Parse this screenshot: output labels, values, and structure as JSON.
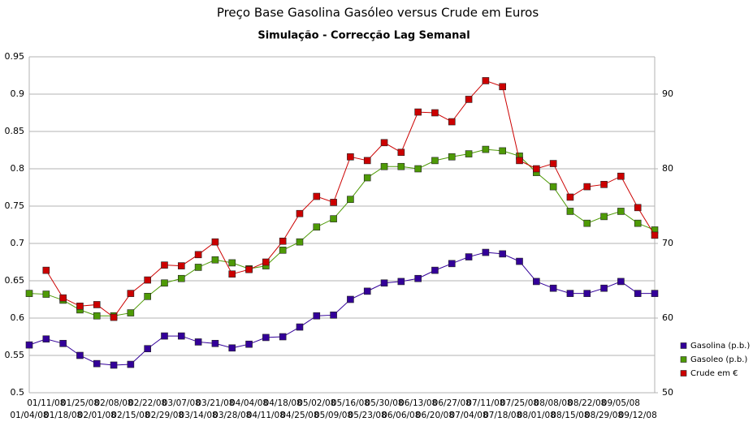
{
  "chart_data": {
    "type": "line",
    "title": "Preço Base Gasolina Gasóleo versus Crude em Euros",
    "subtitle": "Simulação - Correcção Lag Semanal",
    "categories": [
      "01/04/08",
      "01/11/08",
      "01/18/08",
      "01/25/08",
      "02/01/08",
      "02/08/08",
      "02/15/08",
      "02/22/08",
      "02/29/08",
      "03/07/08",
      "03/14/08",
      "03/21/08",
      "03/28/08",
      "04/04/08",
      "04/11/08",
      "04/18/08",
      "04/25/08",
      "05/02/08",
      "05/09/08",
      "05/16/08",
      "05/23/08",
      "05/30/08",
      "06/06/08",
      "06/13/08",
      "06/20/08",
      "06/27/08",
      "07/04/08",
      "07/11/08",
      "07/18/08",
      "07/25/08",
      "08/01/08",
      "08/08/08",
      "08/15/08",
      "08/22/08",
      "08/29/08",
      "09/05/08",
      "09/12/08",
      null
    ],
    "series": [
      {
        "name": "Gasolina (p.b.)",
        "color": "#330099",
        "values": [
          0.564,
          0.572,
          0.566,
          0.55,
          0.539,
          0.537,
          0.538,
          0.559,
          0.576,
          0.576,
          0.568,
          0.566,
          0.56,
          0.565,
          0.574,
          0.575,
          0.588,
          0.603,
          0.604,
          0.625,
          0.636,
          0.647,
          0.649,
          0.653,
          0.664,
          0.673,
          0.682,
          0.688,
          0.686,
          0.676,
          0.649,
          0.64,
          0.633,
          0.633,
          0.64,
          0.649,
          0.633,
          0.633
        ]
      },
      {
        "name": "Gasoleo (p.b.)",
        "color": "#4e9a06",
        "values": [
          0.633,
          0.632,
          0.624,
          0.611,
          0.603,
          0.603,
          0.607,
          0.629,
          0.647,
          0.653,
          0.668,
          0.678,
          0.674,
          0.666,
          0.67,
          0.691,
          0.702,
          0.722,
          0.733,
          0.759,
          0.788,
          0.803,
          0.803,
          0.8,
          0.811,
          0.816,
          0.82,
          0.826,
          0.824,
          0.817,
          0.795,
          0.776,
          0.743,
          0.727,
          0.736,
          0.743,
          0.727,
          0.718
        ]
      },
      {
        "name": "Crude em €",
        "color": "#cc0000",
        "axis": "y2",
        "values": [
          null,
          66.4,
          62.7,
          61.6,
          61.8,
          60.1,
          63.3,
          65.1,
          67.1,
          67.0,
          68.5,
          70.2,
          65.9,
          66.5,
          67.5,
          70.3,
          74.0,
          76.3,
          75.5,
          81.6,
          81.1,
          83.5,
          82.2,
          87.6,
          87.5,
          86.3,
          89.3,
          91.8,
          91.0,
          81.1,
          80.0,
          80.7,
          76.2,
          77.6,
          77.9,
          79.0,
          74.8,
          71.1
        ]
      }
    ],
    "ylim": [
      0.5,
      0.95
    ],
    "yticks": [
      0.5,
      0.55,
      0.6,
      0.65,
      0.7,
      0.75,
      0.8,
      0.85,
      0.9,
      0.95
    ],
    "y2lim": [
      50,
      95
    ],
    "y2ticks": [
      50,
      60,
      70,
      80,
      90
    ],
    "grid": true,
    "legend": "right"
  }
}
